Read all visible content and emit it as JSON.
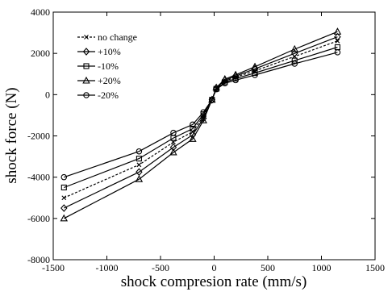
{
  "chart_data": {
    "type": "line",
    "title": "",
    "xlabel": "shock compresion rate (mm/s)",
    "ylabel": "shock force (N)",
    "xlim": [
      -1500,
      1500
    ],
    "ylim": [
      -8000,
      4000
    ],
    "xticks": [
      -1500,
      -1000,
      -500,
      0,
      500,
      1000,
      1500
    ],
    "yticks": [
      -8000,
      -6000,
      -4000,
      -2000,
      0,
      2000,
      4000
    ],
    "legend_position": "top-left",
    "grid": false,
    "x": [
      -1400,
      -700,
      -380,
      -200,
      -100,
      -20,
      20,
      100,
      200,
      380,
      750,
      1150
    ],
    "series": [
      {
        "name": "no change",
        "marker": "x",
        "values": [
          -5000,
          -3400,
          -2300,
          -1800,
          -1050,
          -250,
          300,
          650,
          850,
          1150,
          1850,
          2600
        ]
      },
      {
        "name": "+10%",
        "marker": "diamond",
        "values": [
          -5500,
          -3750,
          -2550,
          -1950,
          -1150,
          -250,
          320,
          700,
          900,
          1250,
          2000,
          2800
        ]
      },
      {
        "name": "-10%",
        "marker": "square",
        "values": [
          -4500,
          -3100,
          -2100,
          -1650,
          -950,
          -250,
          280,
          600,
          780,
          1050,
          1650,
          2300
        ]
      },
      {
        "name": "+20%",
        "marker": "triangle",
        "values": [
          -6000,
          -4100,
          -2800,
          -2150,
          -1250,
          -250,
          340,
          750,
          960,
          1350,
          2200,
          3050
        ]
      },
      {
        "name": "-20%",
        "marker": "circle",
        "values": [
          -4000,
          -2750,
          -1850,
          -1450,
          -850,
          -250,
          260,
          550,
          700,
          950,
          1500,
          2050
        ]
      }
    ]
  }
}
